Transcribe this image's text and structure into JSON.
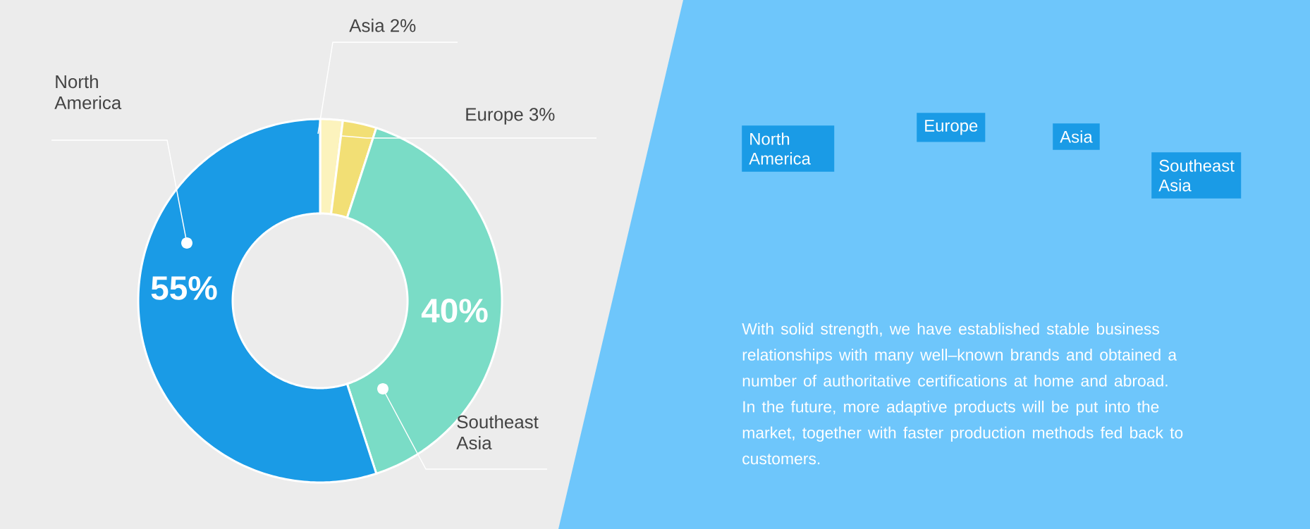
{
  "chart_data": [
    {
      "type": "donut",
      "categories": [
        "Asia",
        "Europe",
        "Southeast Asia",
        "North America"
      ],
      "values": [
        2,
        3,
        40,
        55
      ],
      "colors": [
        "#fcf3bd",
        "#f2df75",
        "#7adcc6",
        "#1a9be6"
      ],
      "value_labels": [
        "2%",
        "3%",
        "40%",
        "55%"
      ]
    },
    {
      "type": "other",
      "annotations": [
        "North America",
        "Europe",
        "Asia",
        "Southeast Asia",
        "With solid strength, we have established stable business relationships with many well–known brands and obtained a number of authoritative certifications at home and abroad. In the future, more adaptive products will be put into the market, together with faster production methods fed back to customers."
      ]
    }
  ]
}
